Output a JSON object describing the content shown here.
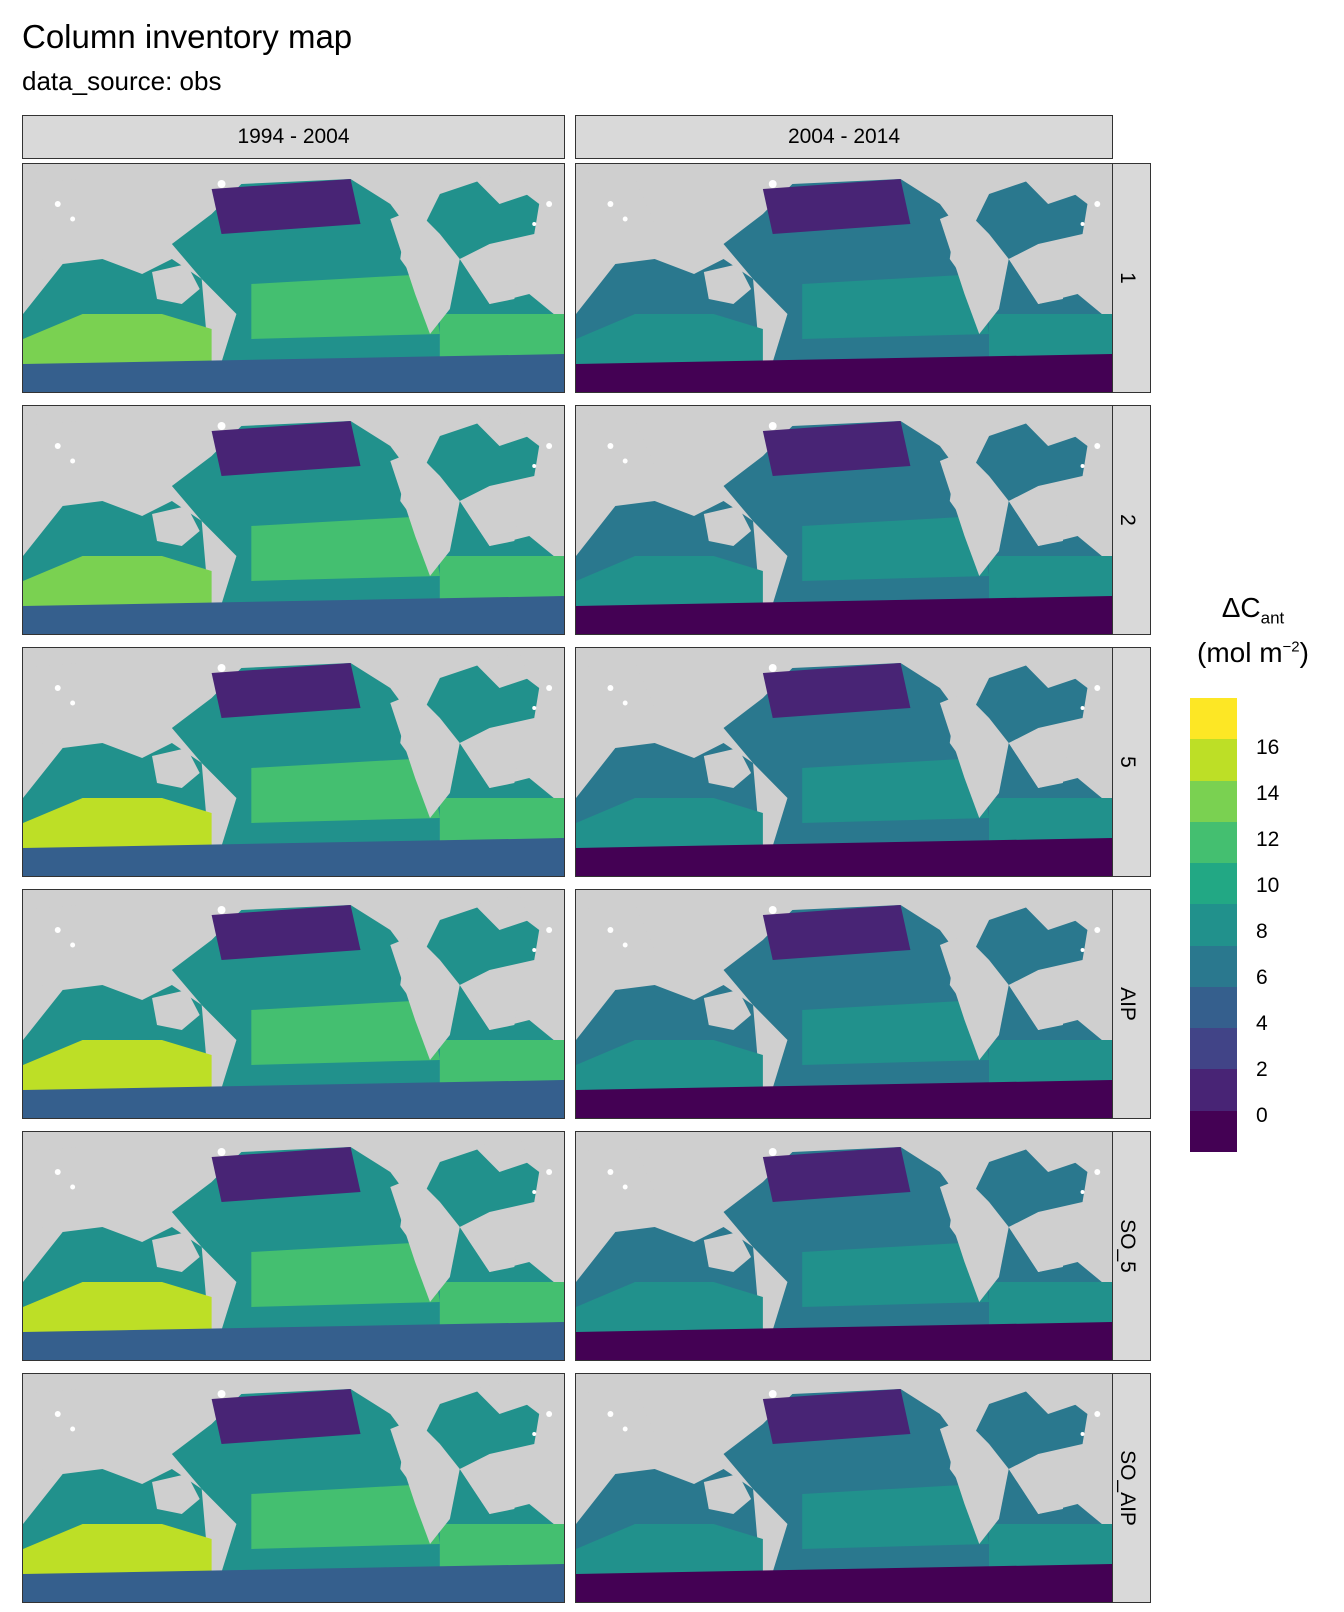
{
  "title": "Column inventory map",
  "subtitle": "data_source: obs",
  "columns": [
    "1994 - 2004",
    "2004 - 2014"
  ],
  "rows": [
    "1",
    "2",
    "5",
    "AIP",
    "SO_5",
    "SO_AIP"
  ],
  "legend": {
    "title_main": "ΔC",
    "title_sub": "ant",
    "unit_pre": "(mol m",
    "unit_sup": "−2",
    "unit_post": ")",
    "ticks": [
      "16",
      "14",
      "12",
      "10",
      "8",
      "6",
      "4",
      "2",
      "0"
    ],
    "colors_top_to_bottom": [
      "#fde725",
      "#bddf26",
      "#7ad151",
      "#44bf70",
      "#22a884",
      "#21918c",
      "#2a788e",
      "#355f8d",
      "#414487",
      "#482475",
      "#440154"
    ]
  },
  "map_colors": {
    "land": "#cfcfcf",
    "ice": "#ffffff"
  }
}
